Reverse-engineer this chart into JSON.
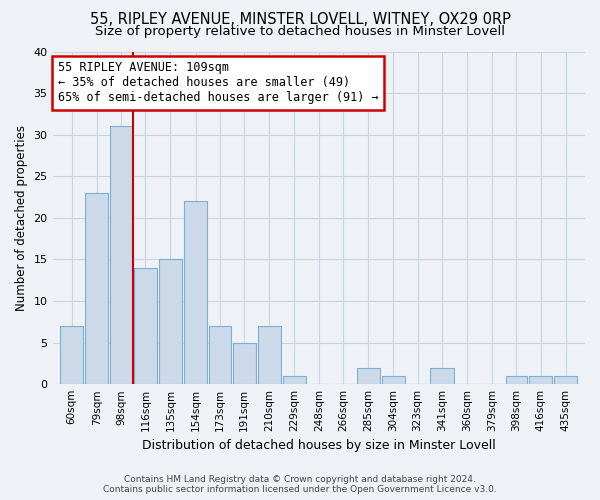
{
  "title": "55, RIPLEY AVENUE, MINSTER LOVELL, WITNEY, OX29 0RP",
  "subtitle": "Size of property relative to detached houses in Minster Lovell",
  "xlabel": "Distribution of detached houses by size in Minster Lovell",
  "ylabel": "Number of detached properties",
  "bar_color": "#ccd9e8",
  "bar_edge_color": "#7bafd4",
  "vline_color": "#cc0000",
  "categories": [
    "60sqm",
    "79sqm",
    "98sqm",
    "116sqm",
    "135sqm",
    "154sqm",
    "173sqm",
    "191sqm",
    "210sqm",
    "229sqm",
    "248sqm",
    "266sqm",
    "285sqm",
    "304sqm",
    "323sqm",
    "341sqm",
    "360sqm",
    "379sqm",
    "398sqm",
    "416sqm",
    "435sqm"
  ],
  "bin_edges": [
    60,
    79,
    98,
    116,
    135,
    154,
    173,
    191,
    210,
    229,
    248,
    266,
    285,
    304,
    323,
    341,
    360,
    379,
    398,
    416,
    435,
    454
  ],
  "values": [
    7,
    23,
    31,
    14,
    15,
    22,
    7,
    5,
    7,
    1,
    0,
    0,
    2,
    1,
    0,
    2,
    0,
    0,
    1,
    1,
    1
  ],
  "vline_x_bin": 2,
  "ylim": [
    0,
    40
  ],
  "yticks": [
    0,
    5,
    10,
    15,
    20,
    25,
    30,
    35,
    40
  ],
  "annotation_line1": "55 RIPLEY AVENUE: 109sqm",
  "annotation_line2": "← 35% of detached houses are smaller (49)",
  "annotation_line3": "65% of semi-detached houses are larger (91) →",
  "annotation_box_color": "#ffffff",
  "annotation_box_edge": "#cc0000",
  "footer_line1": "Contains HM Land Registry data © Crown copyright and database right 2024.",
  "footer_line2": "Contains public sector information licensed under the Open Government Licence v3.0.",
  "background_color": "#eef2f7",
  "grid_color": "#c8d4e0",
  "title_fontsize": 10.5,
  "subtitle_fontsize": 9.5,
  "ylabel_fontsize": 8.5,
  "xlabel_fontsize": 9,
  "tick_fontsize": 7.5,
  "annot_fontsize": 8.5,
  "footer_fontsize": 6.5
}
